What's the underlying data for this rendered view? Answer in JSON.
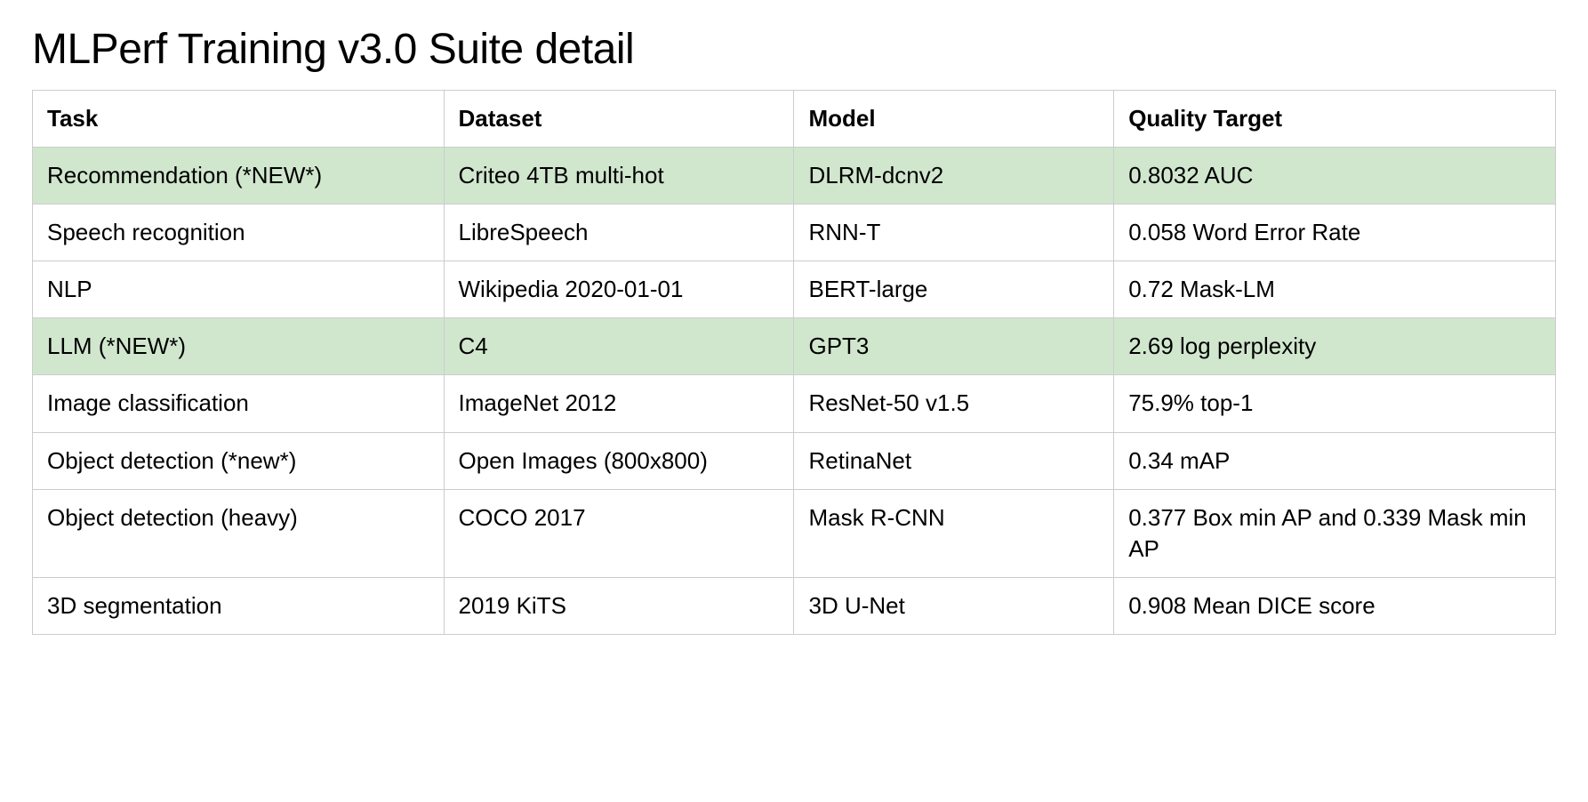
{
  "title": "MLPerf Training v3.0 Suite detail",
  "table": {
    "columns": [
      "Task",
      "Dataset",
      "Model",
      "Quality Target"
    ],
    "column_widths_pct": [
      27,
      23,
      21,
      29
    ],
    "header_fontsize": 26,
    "header_fontweight": 700,
    "cell_fontsize": 26,
    "border_color": "#cccccc",
    "highlight_color": "#d0e7ce",
    "background_color": "#ffffff",
    "text_color": "#000000",
    "rows": [
      {
        "cells": [
          "Recommendation (*NEW*)",
          "Criteo 4TB multi-hot",
          "DLRM-dcnv2",
          "0.8032 AUC"
        ],
        "highlight": true
      },
      {
        "cells": [
          "Speech recognition",
          "LibreSpeech",
          "RNN-T",
          "0.058 Word Error Rate"
        ],
        "highlight": false
      },
      {
        "cells": [
          "NLP",
          "Wikipedia 2020-01-01",
          "BERT-large",
          "0.72 Mask-LM"
        ],
        "highlight": false
      },
      {
        "cells": [
          "LLM (*NEW*)",
          "C4",
          "GPT3",
          "2.69 log perplexity"
        ],
        "highlight": true
      },
      {
        "cells": [
          "Image classification",
          "ImageNet 2012",
          "ResNet-50 v1.5",
          "75.9% top-1"
        ],
        "highlight": false
      },
      {
        "cells": [
          "Object detection (*new*)",
          "Open Images (800x800)",
          "RetinaNet",
          "0.34 mAP"
        ],
        "highlight": false
      },
      {
        "cells": [
          "Object detection (heavy)",
          "COCO 2017",
          "Mask R-CNN",
          "0.377 Box min AP and 0.339 Mask min AP"
        ],
        "highlight": false
      },
      {
        "cells": [
          "3D segmentation",
          "2019 KiTS",
          "3D U-Net",
          "0.908 Mean DICE score"
        ],
        "highlight": false
      }
    ]
  },
  "title_fontsize": 48,
  "title_fontweight": 400
}
